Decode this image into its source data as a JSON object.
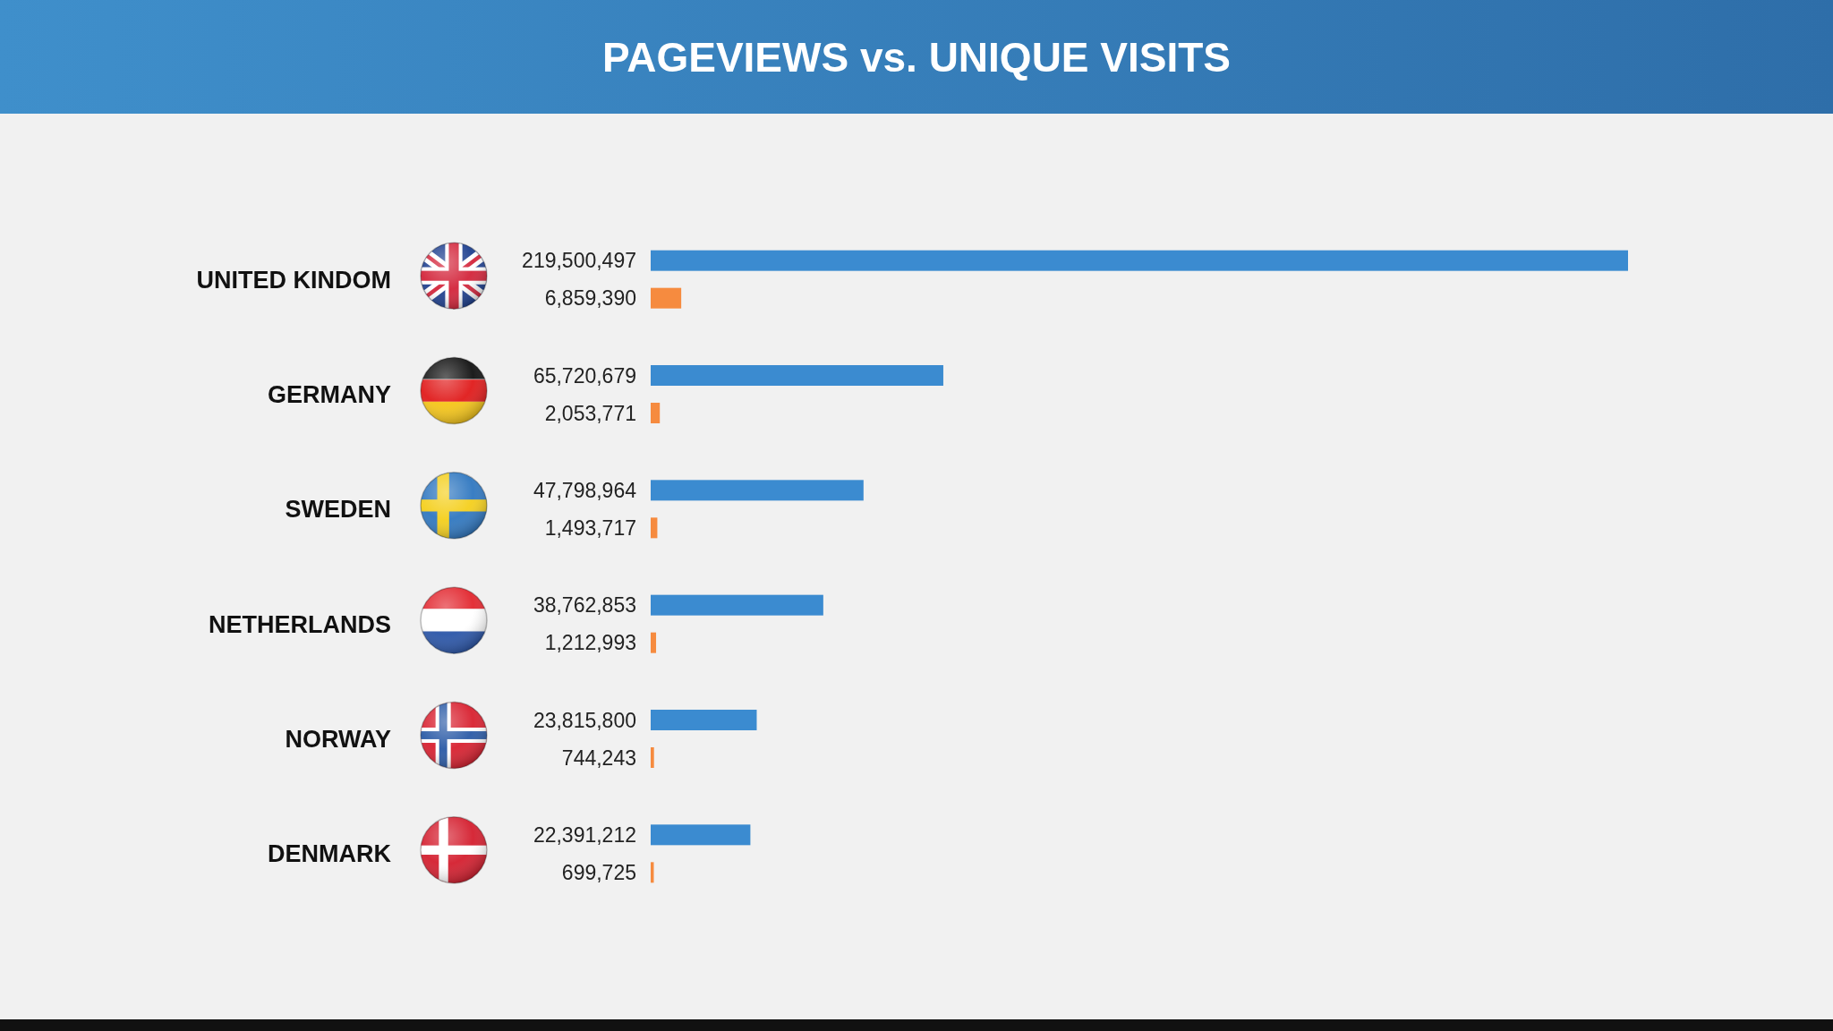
{
  "chart_data": {
    "type": "bar",
    "title": "PAGEVIEWS vs. UNIQUE VISITS",
    "orientation": "horizontal",
    "categories": [
      "UNITED KINDOM",
      "GERMANY",
      "SWEDEN",
      "NETHERLANDS",
      "NORWAY",
      "DENMARK"
    ],
    "series": [
      {
        "color": "#3b8bd0",
        "values": [
          219500497,
          65720679,
          47798964,
          38762853,
          23815800,
          22391212
        ],
        "value_labels": [
          "219,500,497",
          "65,720,679",
          "47,798,964",
          "38,762,853",
          "23,815,800",
          "22,391,212"
        ]
      },
      {
        "color": "#f68b3f",
        "values": [
          6859390,
          2053771,
          1493717,
          1212993,
          744243,
          699725
        ],
        "value_labels": [
          "6,859,390",
          "2,053,771",
          "1,493,717",
          "1,212,993",
          "744,243",
          "699,725"
        ]
      }
    ]
  }
}
